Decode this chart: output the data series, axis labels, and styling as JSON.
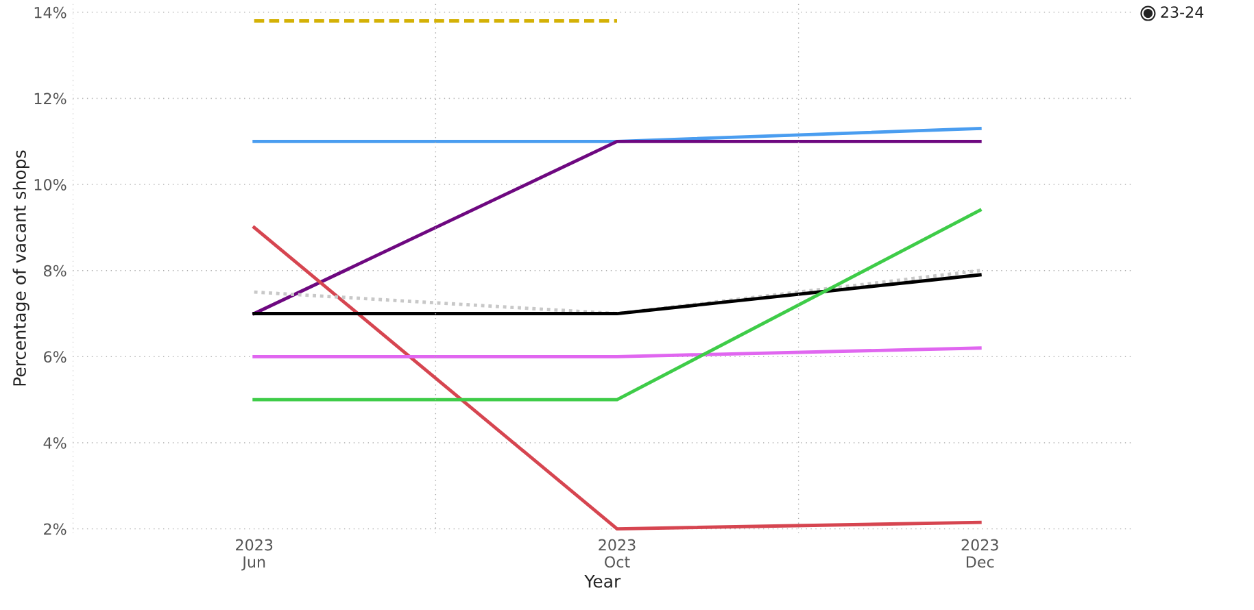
{
  "chart_data": {
    "type": "line",
    "xlabel": "Year",
    "ylabel": "Percentage of vacant shops",
    "categories": [
      "2023\nJun",
      "2023\nOct",
      "2023\nDec"
    ],
    "series": [
      {
        "color": "#d4b106",
        "line_style": "dashed",
        "values": [
          13.8,
          13.8,
          null
        ]
      },
      {
        "color": "#4a9df0",
        "values": [
          11,
          11,
          11.3
        ]
      },
      {
        "color": "#6e0880",
        "values": [
          7,
          11,
          11
        ]
      },
      {
        "color": "#d64550",
        "values": [
          9,
          2,
          2.15
        ]
      },
      {
        "color": "#c8c8c8",
        "line_style": "dotted",
        "values": [
          7.5,
          7,
          8
        ]
      },
      {
        "color": "#000000",
        "values": [
          7,
          7,
          7.9
        ]
      },
      {
        "color": "#e066f0",
        "values": [
          6,
          6,
          6.2
        ]
      },
      {
        "color": "#3ecc48",
        "values": [
          5,
          5,
          9.4
        ]
      }
    ],
    "ylim": [
      1.9,
      14.2
    ],
    "yticks": [
      {
        "value": 2,
        "label": "2%"
      },
      {
        "value": 4,
        "label": "4%"
      },
      {
        "value": 6,
        "label": "6%"
      },
      {
        "value": 8,
        "label": "8%"
      },
      {
        "value": 10,
        "label": "10%"
      },
      {
        "value": 12,
        "label": "12%"
      },
      {
        "value": 14,
        "label": "14%"
      }
    ],
    "grid": true,
    "line_style": "solid",
    "marker": "none",
    "annotations": [
      "23-24"
    ]
  }
}
